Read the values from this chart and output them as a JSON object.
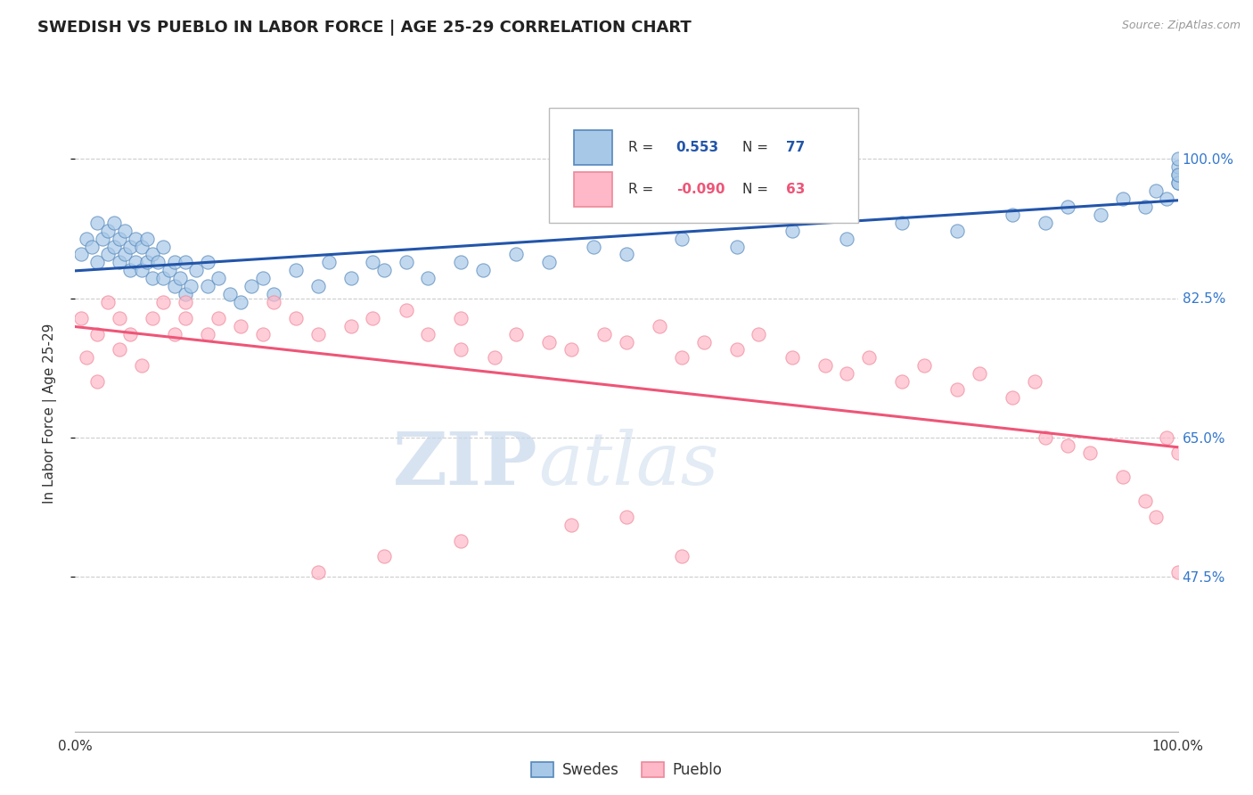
{
  "title": "SWEDISH VS PUEBLO IN LABOR FORCE | AGE 25-29 CORRELATION CHART",
  "source_text": "Source: ZipAtlas.com",
  "ylabel": "In Labor Force | Age 25-29",
  "xlim": [
    0.0,
    1.0
  ],
  "ylim": [
    0.28,
    1.08
  ],
  "yticks": [
    0.475,
    0.65,
    0.825,
    1.0
  ],
  "ytick_labels": [
    "47.5%",
    "65.0%",
    "82.5%",
    "100.0%"
  ],
  "xtick_labels_bottom": [
    "0.0%",
    "100.0%"
  ],
  "xticks_bottom": [
    0.0,
    1.0
  ],
  "legend_r_blue": "0.553",
  "legend_n_blue": "77",
  "legend_r_pink": "-0.090",
  "legend_n_pink": "63",
  "blue_scatter_color": "#A8C8E8",
  "blue_edge_color": "#5588BB",
  "pink_scatter_color": "#FFB8C8",
  "pink_edge_color": "#EE8899",
  "blue_line_color": "#2255AA",
  "pink_line_color": "#EE5577",
  "watermark_zip": "ZIP",
  "watermark_atlas": "atlas",
  "background_color": "#FFFFFF",
  "grid_color": "#CCCCCC",
  "swedish_x": [
    0.005,
    0.01,
    0.015,
    0.02,
    0.02,
    0.025,
    0.03,
    0.03,
    0.035,
    0.035,
    0.04,
    0.04,
    0.045,
    0.045,
    0.05,
    0.05,
    0.055,
    0.055,
    0.06,
    0.06,
    0.065,
    0.065,
    0.07,
    0.07,
    0.075,
    0.08,
    0.08,
    0.085,
    0.09,
    0.09,
    0.095,
    0.1,
    0.1,
    0.105,
    0.11,
    0.12,
    0.12,
    0.13,
    0.14,
    0.15,
    0.16,
    0.17,
    0.18,
    0.2,
    0.22,
    0.23,
    0.25,
    0.27,
    0.28,
    0.3,
    0.32,
    0.35,
    0.37,
    0.4,
    0.43,
    0.47,
    0.5,
    0.55,
    0.6,
    0.65,
    0.7,
    0.75,
    0.8,
    0.85,
    0.88,
    0.9,
    0.93,
    0.95,
    0.97,
    0.98,
    0.99,
    1.0,
    1.0,
    1.0,
    1.0,
    1.0,
    1.0
  ],
  "swedish_y": [
    0.88,
    0.9,
    0.89,
    0.87,
    0.92,
    0.9,
    0.88,
    0.91,
    0.89,
    0.92,
    0.87,
    0.9,
    0.88,
    0.91,
    0.86,
    0.89,
    0.87,
    0.9,
    0.86,
    0.89,
    0.87,
    0.9,
    0.85,
    0.88,
    0.87,
    0.85,
    0.89,
    0.86,
    0.84,
    0.87,
    0.85,
    0.83,
    0.87,
    0.84,
    0.86,
    0.84,
    0.87,
    0.85,
    0.83,
    0.82,
    0.84,
    0.85,
    0.83,
    0.86,
    0.84,
    0.87,
    0.85,
    0.87,
    0.86,
    0.87,
    0.85,
    0.87,
    0.86,
    0.88,
    0.87,
    0.89,
    0.88,
    0.9,
    0.89,
    0.91,
    0.9,
    0.92,
    0.91,
    0.93,
    0.92,
    0.94,
    0.93,
    0.95,
    0.94,
    0.96,
    0.95,
    0.97,
    0.98,
    0.97,
    0.99,
    0.98,
    1.0
  ],
  "pueblo_x": [
    0.005,
    0.01,
    0.02,
    0.02,
    0.03,
    0.04,
    0.04,
    0.05,
    0.06,
    0.07,
    0.08,
    0.09,
    0.1,
    0.1,
    0.12,
    0.13,
    0.15,
    0.17,
    0.18,
    0.2,
    0.22,
    0.25,
    0.27,
    0.3,
    0.32,
    0.35,
    0.35,
    0.38,
    0.4,
    0.43,
    0.45,
    0.48,
    0.5,
    0.53,
    0.55,
    0.57,
    0.6,
    0.62,
    0.65,
    0.68,
    0.7,
    0.72,
    0.75,
    0.77,
    0.8,
    0.82,
    0.85,
    0.87,
    0.88,
    0.9,
    0.92,
    0.95,
    0.97,
    0.98,
    0.99,
    1.0,
    1.0,
    0.5,
    0.55,
    0.45,
    0.35,
    0.28,
    0.22
  ],
  "pueblo_y": [
    0.8,
    0.75,
    0.78,
    0.72,
    0.82,
    0.8,
    0.76,
    0.78,
    0.74,
    0.8,
    0.82,
    0.78,
    0.8,
    0.82,
    0.78,
    0.8,
    0.79,
    0.78,
    0.82,
    0.8,
    0.78,
    0.79,
    0.8,
    0.81,
    0.78,
    0.76,
    0.8,
    0.75,
    0.78,
    0.77,
    0.76,
    0.78,
    0.77,
    0.79,
    0.75,
    0.77,
    0.76,
    0.78,
    0.75,
    0.74,
    0.73,
    0.75,
    0.72,
    0.74,
    0.71,
    0.73,
    0.7,
    0.72,
    0.65,
    0.64,
    0.63,
    0.6,
    0.57,
    0.55,
    0.65,
    0.63,
    0.48,
    0.55,
    0.5,
    0.54,
    0.52,
    0.5,
    0.48
  ]
}
